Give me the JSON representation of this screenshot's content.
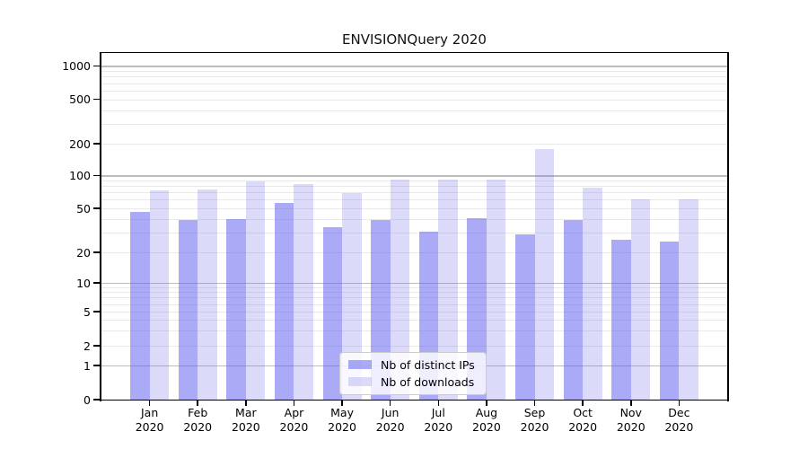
{
  "chart_data": {
    "type": "bar",
    "title": "ENVISIONQuery 2020",
    "categories": [
      "Jan",
      "Feb",
      "Mar",
      "Apr",
      "May",
      "Jun",
      "Jul",
      "Aug",
      "Sep",
      "Oct",
      "Nov",
      "Dec"
    ],
    "category_year": "2020",
    "series": [
      {
        "name": "Nb of distinct IPs",
        "color": "rgba(85,85,240,0.5)",
        "solid_hex": "#aaaaf8",
        "values": [
          46,
          39,
          40,
          56,
          34,
          39,
          31,
          41,
          29,
          39,
          26,
          25
        ]
      },
      {
        "name": "Nb of downloads",
        "color": "rgba(110,110,230,0.25)",
        "solid_hex": "#dbdbf9",
        "values": [
          73,
          74,
          89,
          84,
          69,
          92,
          91,
          91,
          178,
          78,
          61,
          60
        ]
      }
    ],
    "y_axis": {
      "scale": "log-with-zero",
      "tick_labels": [
        1000,
        500,
        200,
        100,
        50,
        20,
        10,
        5,
        2,
        1,
        0
      ],
      "major_grid_values": [
        1,
        10,
        100,
        1000
      ],
      "ylim": [
        0,
        1000
      ]
    },
    "legend_position": "lower center (inside plot)",
    "grid": "horizontal, minor + major"
  }
}
